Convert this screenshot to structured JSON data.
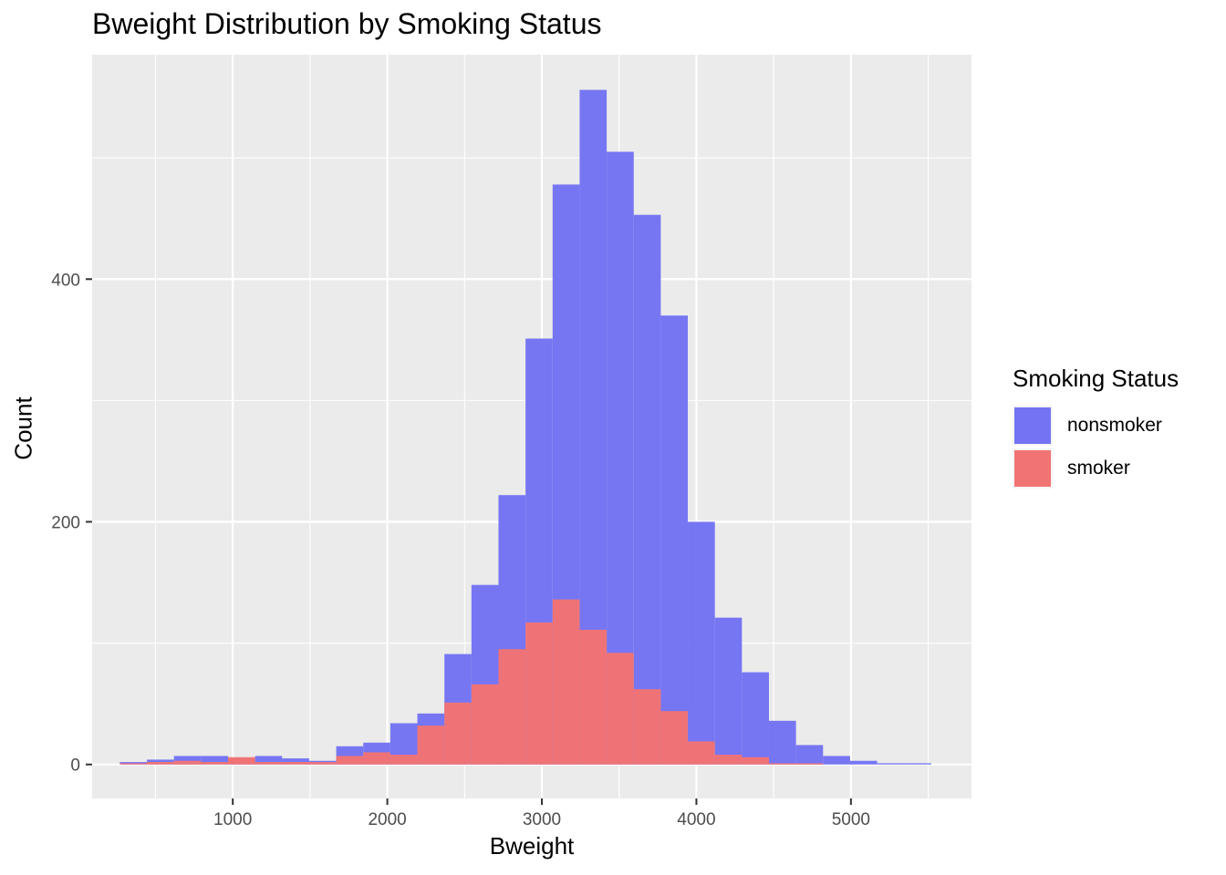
{
  "chart_data": {
    "type": "bar",
    "title": "Bweight Distribution by Smoking Status",
    "xlabel": "Bweight",
    "ylabel": "Count",
    "xlim": [
      90,
      5780
    ],
    "ylim": [
      -28,
      585
    ],
    "x_ticks": [
      1000,
      2000,
      3000,
      4000,
      5000
    ],
    "y_ticks": [
      0,
      200,
      400
    ],
    "bin_width": 175,
    "bin_centers": [
      357,
      532,
      707,
      882,
      1057,
      1232,
      1407,
      1582,
      1757,
      1932,
      2107,
      2282,
      2457,
      2632,
      2807,
      2982,
      3157,
      3332,
      3507,
      3682,
      3857,
      4032,
      4207,
      4382,
      4557,
      4732,
      4907,
      5082,
      5257,
      5432
    ],
    "series": [
      {
        "name": "nonsmoker",
        "color": "#7373F3",
        "values": [
          2,
          4,
          7,
          7,
          5,
          7,
          5,
          3,
          15,
          18,
          34,
          42,
          91,
          148,
          222,
          351,
          478,
          556,
          505,
          453,
          370,
          200,
          121,
          76,
          36,
          16,
          7,
          3,
          1,
          1
        ]
      },
      {
        "name": "smoker",
        "color": "#F27373",
        "values": [
          1,
          2,
          3,
          2,
          6,
          2,
          2,
          2,
          7,
          10,
          8,
          32,
          51,
          66,
          95,
          117,
          136,
          111,
          92,
          62,
          44,
          19,
          8,
          6,
          1,
          1,
          0,
          0,
          0,
          0
        ]
      }
    ],
    "grid": true,
    "legend_title": "Smoking Status",
    "legend_position": "right"
  }
}
